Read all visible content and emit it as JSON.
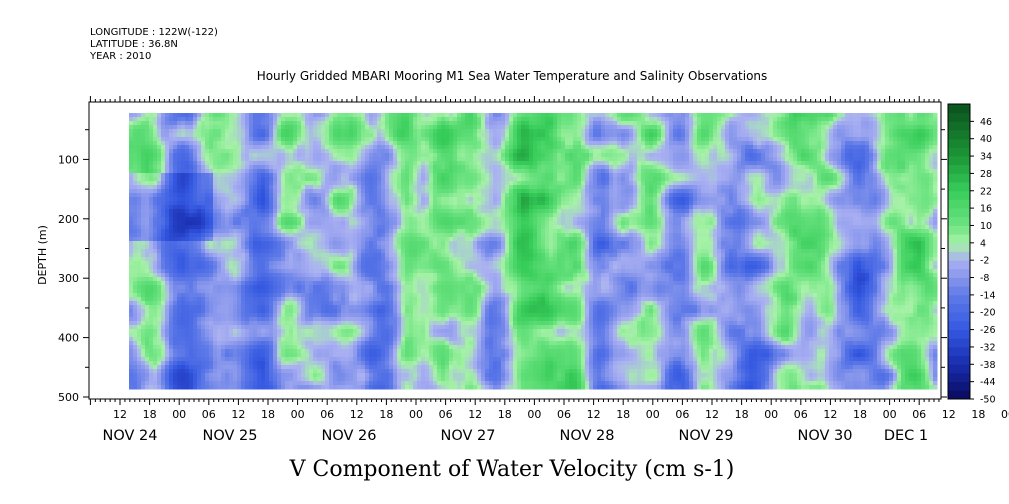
{
  "header": {
    "longitude": "LONGITUDE : 122W(-122)",
    "latitude": "LATITUDE : 36.8N",
    "year": "YEAR : 2010"
  },
  "chart_data": {
    "type": "heatmap",
    "title": "Hourly Gridded MBARI Mooring M1 Sea Water Temperature and Salinity Observations",
    "xlabel": "",
    "ylabel": "DEPTH (m)",
    "bottom_title": "V Component of Water Velocity (cm s-1)",
    "x_hour_ticks": [
      "12",
      "18",
      "00",
      "06",
      "12",
      "18",
      "00",
      "06",
      "12",
      "18",
      "00",
      "06",
      "12",
      "18",
      "00",
      "06",
      "12",
      "18",
      "00",
      "06",
      "12",
      "18",
      "00",
      "06",
      "12",
      "18",
      "00",
      "06",
      "12",
      "18",
      "00",
      "06"
    ],
    "x_day_labels": [
      "NOV 24",
      "NOV 25",
      "NOV 26",
      "NOV 27",
      "NOV 28",
      "NOV 29",
      "NOV 30",
      "DEC 1"
    ],
    "y_ticks": [
      100,
      200,
      300,
      400,
      500
    ],
    "ylim": [
      500,
      0
    ],
    "colorbar_levels": [
      46,
      40,
      34,
      28,
      22,
      16,
      10,
      4,
      -2,
      -8,
      -14,
      -20,
      -26,
      -32,
      -38,
      -44,
      -50
    ],
    "colorbar_range": [
      -50,
      52
    ],
    "colors": {
      "strong_negative": "#0a0f6e",
      "negative": "#3f5fe0",
      "near_zero_negative": "#a9aef0",
      "near_zero_positive": "#a6f2a6",
      "positive": "#3fdc66",
      "strong_positive": "#0b5a1e"
    }
  }
}
